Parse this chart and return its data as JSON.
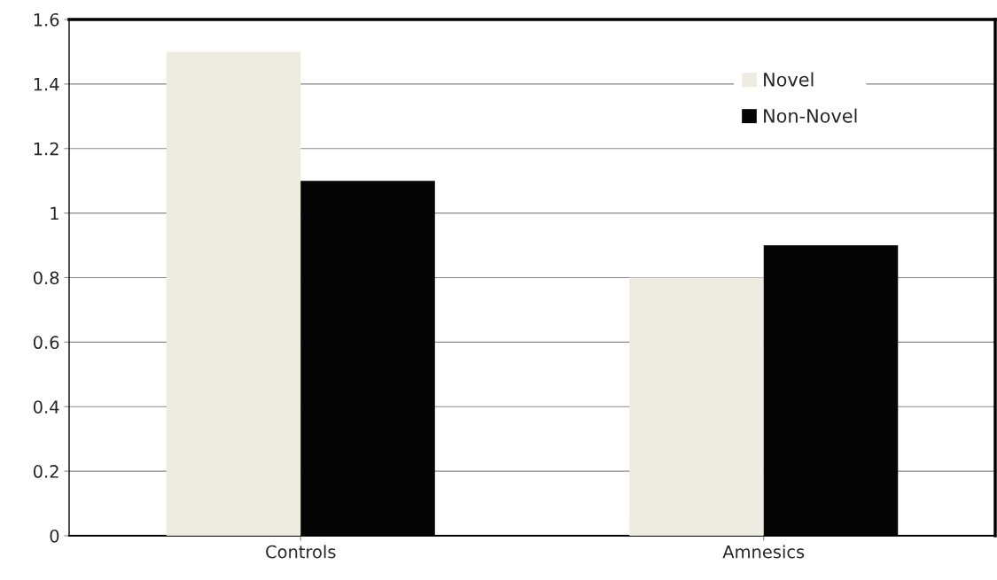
{
  "chart_data": {
    "type": "bar",
    "categories": [
      "Controls",
      "Amnesics"
    ],
    "series": [
      {
        "name": "Novel",
        "color": "#eeebe0",
        "values": [
          1.5,
          0.8
        ]
      },
      {
        "name": "Non-Novel",
        "color": "#050505",
        "values": [
          1.1,
          0.9
        ]
      }
    ],
    "ylim": [
      0,
      1.6
    ],
    "yticks": [
      0,
      0.2,
      0.4,
      0.6,
      0.8,
      1,
      1.2,
      1.4,
      1.6
    ],
    "grid": "y",
    "legend": "top right"
  }
}
